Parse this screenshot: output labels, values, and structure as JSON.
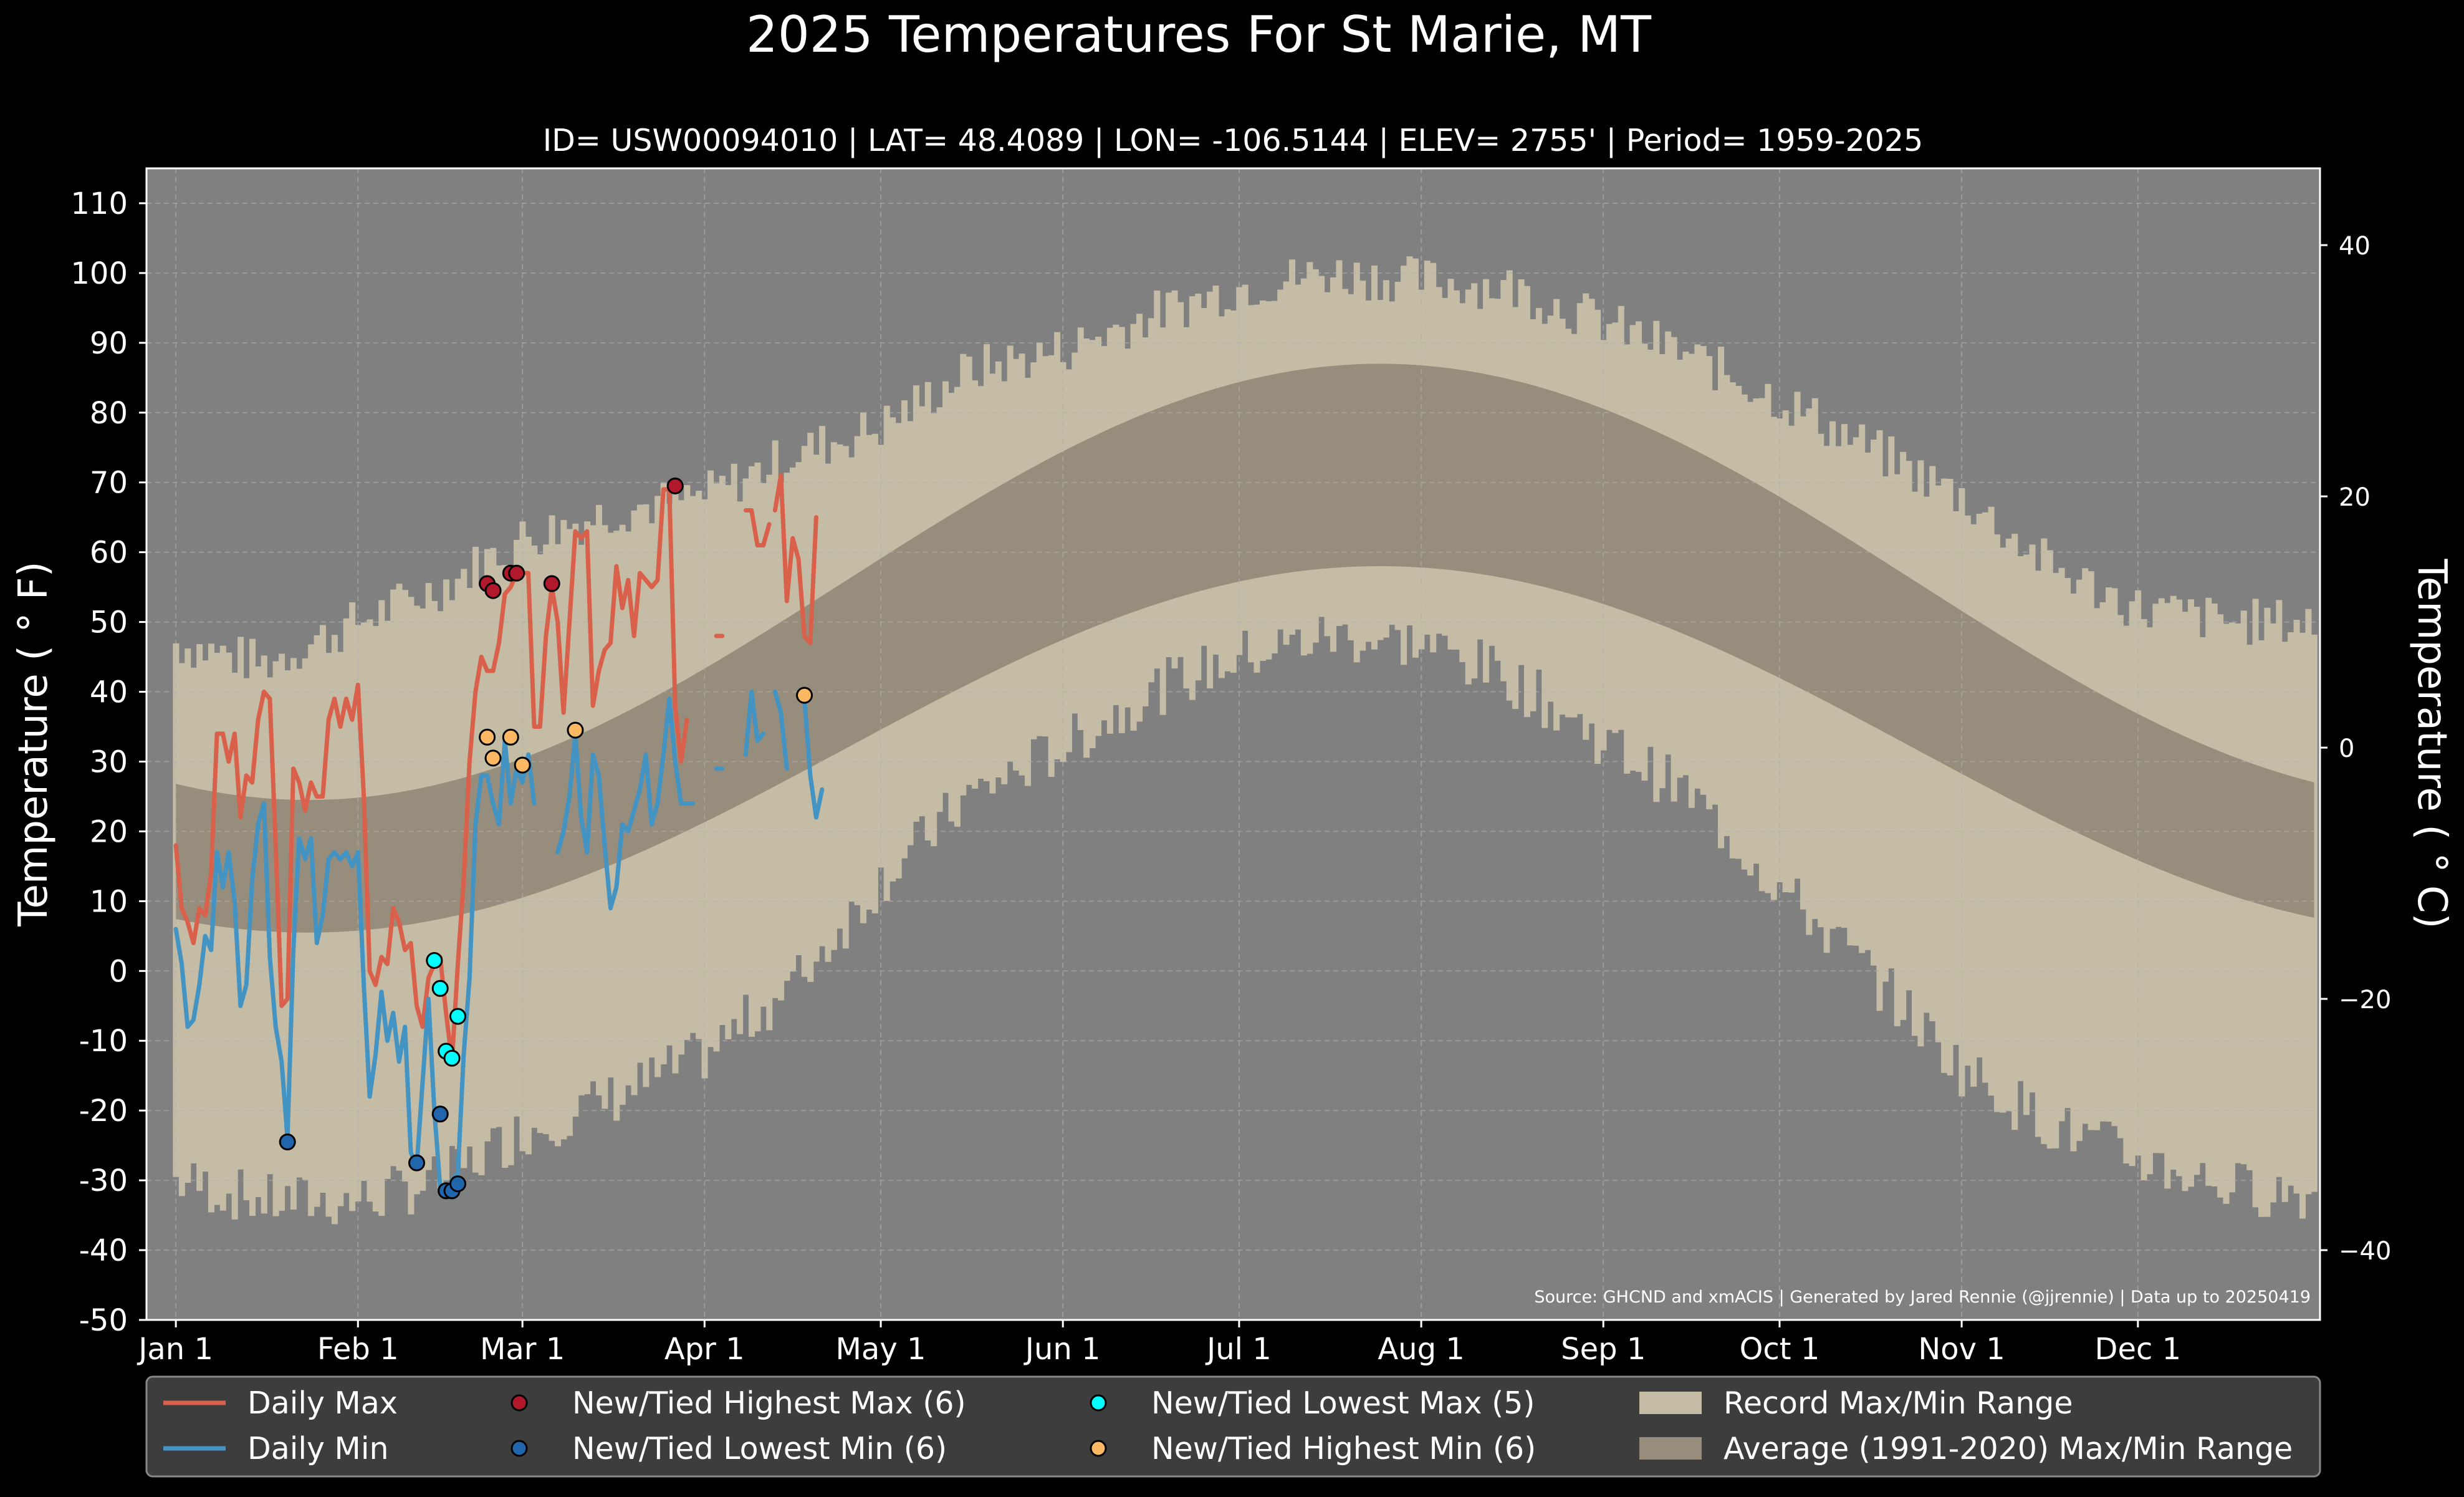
{
  "chart_data": {
    "type": "line",
    "title": "2025 Temperatures For St Marie, MT",
    "subtitle": "ID= USW00094010 | LAT= 48.4089 | LON= -106.5144 | ELEV= 2755' | Period= 1959-2025",
    "ylabel_left": "Temperature ($^\\circ$F)",
    "ylabel_left_display": "Temperature ( ° F)",
    "ylabel_right_display": "Temperature ( ° C)",
    "source_note": "Source: GHCND and xmACIS | Generated by Jared Rennie (@jjrennie) | Data up to 20250419",
    "ylim_f": [
      -50,
      115
    ],
    "xlim_doy": [
      -5,
      365
    ],
    "yticks_f": [
      -50,
      -40,
      -30,
      -20,
      -10,
      0,
      10,
      20,
      30,
      40,
      50,
      60,
      70,
      80,
      90,
      100,
      110
    ],
    "yticks_c": [
      -40,
      -20,
      0,
      20,
      40
    ],
    "xticks": [
      {
        "label": "Jan 1",
        "doy": 0
      },
      {
        "label": "Feb 1",
        "doy": 31
      },
      {
        "label": "Mar 1",
        "doy": 59
      },
      {
        "label": "Apr 1",
        "doy": 90
      },
      {
        "label": "May 1",
        "doy": 120
      },
      {
        "label": "Jun 1",
        "doy": 151
      },
      {
        "label": "Jul 1",
        "doy": 181
      },
      {
        "label": "Aug 1",
        "doy": 212
      },
      {
        "label": "Sep 1",
        "doy": 243
      },
      {
        "label": "Oct 1",
        "doy": 273
      },
      {
        "label": "Nov 1",
        "doy": 304
      },
      {
        "label": "Dec 1",
        "doy": 334
      }
    ],
    "grid": true,
    "record_range_keypoints": {
      "doy": [
        0,
        15,
        31,
        45,
        59,
        75,
        90,
        105,
        120,
        135,
        151,
        166,
        181,
        196,
        212,
        227,
        243,
        258,
        273,
        288,
        304,
        319,
        334,
        350,
        364
      ],
      "high": [
        47,
        44,
        50,
        55,
        62,
        66,
        68,
        74,
        78,
        86,
        89,
        94,
        98,
        100,
        99,
        98,
        93,
        88,
        82,
        75,
        68,
        58,
        52,
        50,
        50
      ],
      "low": [
        -30,
        -33,
        -33,
        -30,
        -23,
        -18,
        -12,
        -2,
        13,
        25,
        32,
        40,
        45,
        48,
        47,
        42,
        33,
        25,
        12,
        0,
        -14,
        -22,
        -27,
        -31,
        -32
      ]
    },
    "normal_range": {
      "max_min": 24.5,
      "max_max": 87,
      "max_peak_doy": 205,
      "min_min": 5.5,
      "min_max": 58,
      "min_peak_doy": 205
    },
    "series": [
      {
        "name": "Daily Max",
        "color": "#d9604a",
        "segments": [
          {
            "doy": [
              0,
              1,
              2,
              3,
              4,
              5,
              6,
              7,
              8,
              9,
              10,
              11,
              12,
              13,
              14,
              15,
              16,
              17,
              18,
              19,
              20,
              21,
              22,
              23,
              24,
              25,
              26,
              27,
              28,
              29,
              30,
              31,
              32,
              33,
              34,
              35,
              36,
              37,
              38,
              39,
              40,
              41,
              42,
              43,
              44,
              45,
              46,
              47,
              48,
              49,
              50,
              51,
              52,
              53,
              54,
              55,
              56,
              57,
              58,
              59,
              60,
              61,
              62,
              63,
              64,
              65,
              66,
              67,
              68,
              69,
              70,
              71,
              72,
              73,
              74,
              75,
              76,
              77,
              78,
              79,
              80,
              81,
              82,
              83,
              84,
              85,
              86,
              87
            ],
            "values": [
              18,
              9,
              7,
              4,
              9,
              8,
              14,
              34,
              34,
              30,
              34,
              22,
              28,
              27,
              36,
              40,
              39,
              18,
              -5,
              -4,
              29,
              27,
              23,
              27,
              25,
              25,
              36,
              39,
              35,
              39,
              36,
              41,
              25,
              0,
              -2,
              2,
              1,
              9,
              7,
              3,
              4,
              -5,
              -8,
              -1,
              1,
              2,
              -6,
              -13,
              1,
              13,
              30,
              40,
              45,
              43,
              43,
              47,
              54,
              55,
              57,
              57,
              57,
              35,
              35,
              48,
              55,
              50,
              37,
              50,
              63,
              62,
              63,
              38,
              43,
              46,
              47,
              58,
              52,
              56,
              48,
              57,
              56,
              55,
              56,
              69,
              69,
              38,
              30,
              36
            ]
          },
          {
            "doy": [
              92,
              93
            ],
            "values": [
              48,
              48
            ]
          },
          {
            "doy": [
              97,
              98,
              99,
              100,
              101
            ],
            "values": [
              66,
              66,
              61,
              61,
              64
            ]
          },
          {
            "doy": [
              102,
              103,
              104,
              105,
              106,
              107,
              108
            ],
            "values": [
              66,
              71,
              53,
              62,
              59,
              48,
              47
            ]
          },
          {
            "doy": [
              108,
              109
            ],
            "values": [
              47,
              65
            ]
          }
        ]
      },
      {
        "name": "Daily Min",
        "color": "#4393c3",
        "segments": [
          {
            "doy": [
              0,
              1,
              2,
              3,
              4,
              5,
              6,
              7,
              8,
              9,
              10,
              11,
              12,
              13,
              14,
              15,
              16,
              17,
              18,
              19,
              20,
              21,
              22,
              23,
              24,
              25,
              26,
              27,
              28,
              29,
              30,
              31,
              32,
              33,
              34,
              35,
              36,
              37,
              38,
              39,
              40,
              41,
              42,
              43,
              44,
              45,
              46,
              47,
              48,
              49,
              50,
              51,
              52,
              53,
              54,
              55,
              56,
              57,
              58,
              59,
              60,
              61
            ],
            "values": [
              6,
              1,
              -8,
              -7,
              -2,
              5,
              3,
              17,
              12,
              17,
              10,
              -5,
              -2,
              13,
              21,
              24,
              2,
              -8,
              -13,
              -24,
              3,
              19,
              16,
              19,
              4,
              8,
              16,
              17,
              16,
              17,
              15,
              17,
              -2,
              -18,
              -12,
              -3,
              -10,
              -6,
              -13,
              -8,
              -26,
              -28,
              -16,
              -4,
              -20,
              -31,
              -32,
              -30,
              -29,
              -12,
              -1,
              21,
              28,
              28,
              24,
              21,
              33,
              24,
              29,
              27,
              31,
              24
            ]
          },
          {
            "doy": [
              65,
              66,
              67,
              68,
              69,
              70,
              71,
              72,
              73,
              74,
              75,
              76,
              77,
              78,
              79,
              80,
              81,
              82,
              83,
              84,
              85,
              86,
              87,
              88
            ],
            "values": [
              17,
              20,
              25,
              34,
              22,
              17,
              31,
              28,
              18,
              9,
              12,
              21,
              20,
              23,
              26,
              31,
              21,
              24,
              31,
              39,
              30,
              24,
              24,
              24
            ]
          },
          {
            "doy": [
              92,
              93
            ],
            "values": [
              29,
              29
            ]
          },
          {
            "doy": [
              97,
              98,
              99,
              100
            ],
            "values": [
              31,
              40,
              33,
              34
            ]
          },
          {
            "doy": [
              102,
              103,
              104
            ],
            "values": [
              40,
              37,
              29
            ]
          },
          {
            "doy": [
              107,
              108,
              109,
              110
            ],
            "values": [
              39,
              28,
              22,
              26
            ]
          }
        ]
      }
    ],
    "markers": [
      {
        "name": "New/Tied Highest Max (6)",
        "color": "#b2182b",
        "points": [
          {
            "doy": 57,
            "value": 57
          },
          {
            "doy": 58,
            "value": 57
          },
          {
            "doy": 53,
            "value": 55.5
          },
          {
            "doy": 54,
            "value": 54.5
          },
          {
            "doy": 64,
            "value": 55.5
          },
          {
            "doy": 85,
            "value": 69.5
          }
        ]
      },
      {
        "name": "New/Tied Lowest Min (6)",
        "color": "#2166ac",
        "points": [
          {
            "doy": 19,
            "value": -24.5
          },
          {
            "doy": 41,
            "value": -27.5
          },
          {
            "doy": 45,
            "value": -20.5
          },
          {
            "doy": 46,
            "value": -31.5
          },
          {
            "doy": 47,
            "value": -31.5
          },
          {
            "doy": 48,
            "value": -30.5
          }
        ]
      },
      {
        "name": "New/Tied Lowest Max (5)",
        "color": "#00ffff",
        "points": [
          {
            "doy": 44,
            "value": 1.5
          },
          {
            "doy": 45,
            "value": -2.5
          },
          {
            "doy": 46,
            "value": -11.5
          },
          {
            "doy": 47,
            "value": -12.5
          },
          {
            "doy": 48,
            "value": -6.5
          }
        ]
      },
      {
        "name": "New/Tied Highest Min (6)",
        "color": "#fdb863",
        "points": [
          {
            "doy": 53,
            "value": 33.5
          },
          {
            "doy": 54,
            "value": 30.5
          },
          {
            "doy": 57,
            "value": 33.5
          },
          {
            "doy": 59,
            "value": 29.5
          },
          {
            "doy": 68,
            "value": 34.5
          },
          {
            "doy": 107,
            "value": 39.5
          }
        ]
      }
    ],
    "legend": {
      "placement": "bottom",
      "entries": [
        {
          "label": "Daily Max",
          "kind": "line",
          "color": "#d9604a"
        },
        {
          "label": "New/Tied Highest Max (6)",
          "kind": "marker",
          "color": "#b2182b"
        },
        {
          "label": "New/Tied Lowest Max (5)",
          "kind": "marker",
          "color": "#00ffff"
        },
        {
          "label": "Record Max/Min Range",
          "kind": "patch",
          "color": "#c4bca5"
        },
        {
          "label": "Daily Min",
          "kind": "line",
          "color": "#4393c3"
        },
        {
          "label": "New/Tied Lowest Min (6)",
          "kind": "marker",
          "color": "#2166ac"
        },
        {
          "label": "New/Tied Highest Min (6)",
          "kind": "marker",
          "color": "#fdb863"
        },
        {
          "label": "Average (1991-2020) Max/Min Range",
          "kind": "patch",
          "color": "#978d7c"
        }
      ]
    },
    "colors": {
      "background": "#000000",
      "plot_background": "#808080",
      "record_range": "#c4bca5",
      "normal_range": "#978d7c",
      "grid": "#b0b0b0",
      "legend_bg": "#3d3d3d",
      "text": "#ffffff"
    }
  }
}
